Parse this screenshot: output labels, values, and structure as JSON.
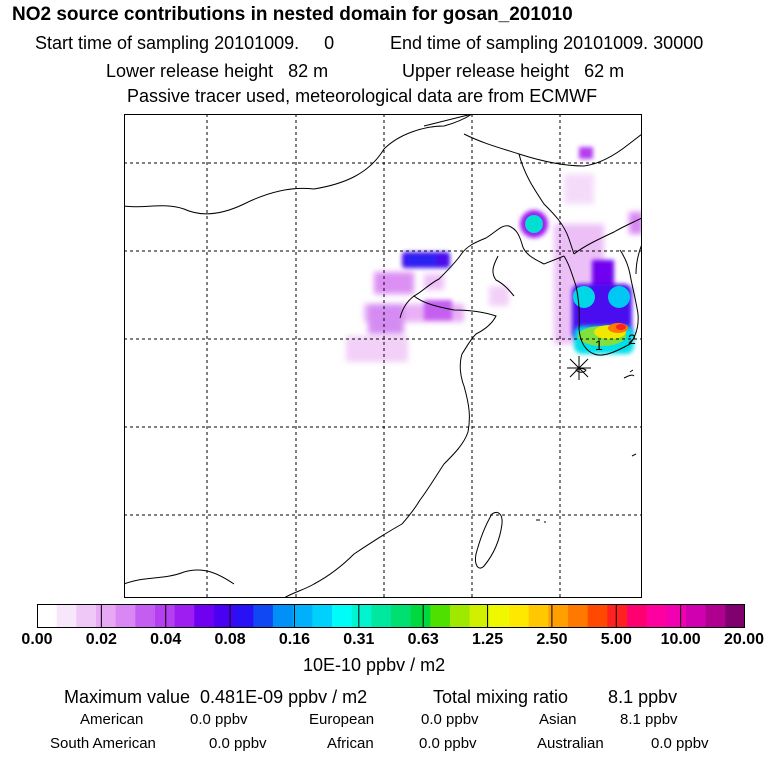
{
  "header": {
    "title": "NO2 source contributions in nested domain for gosan_201010",
    "start_label": "Start time of sampling 20101009.     0",
    "end_label": "End time of sampling 20101009. 30000",
    "lower_height": "Lower release height   82 m",
    "upper_height": "Upper release height   62 m",
    "tracer_note": "Passive tracer used, meteorological data are from ECMWF"
  },
  "map": {
    "markers": [
      {
        "label": "1",
        "type": "release-point"
      },
      {
        "label": "2",
        "type": "release-point"
      },
      {
        "label": "",
        "type": "receptor-star"
      }
    ]
  },
  "colorbar": {
    "colors": [
      "#ffffff",
      "#f8e6fb",
      "#f0c8f8",
      "#e7a8f5",
      "#d988f3",
      "#c45ef0",
      "#b43ef0",
      "#9e1ef2",
      "#7000f0",
      "#4a00f2",
      "#2a10f4",
      "#1048f4",
      "#0090f8",
      "#00b0fa",
      "#00d0fc",
      "#00fcf8",
      "#00f4d0",
      "#00e8a0",
      "#00e070",
      "#00d840",
      "#50e000",
      "#a0e800",
      "#d0f000",
      "#f0f800",
      "#ffe800",
      "#ffc800",
      "#ffa000",
      "#ff7800",
      "#ff4800",
      "#ff2020",
      "#ff0070",
      "#ff00a0",
      "#f000b0",
      "#d000b0",
      "#b00090",
      "#800070"
    ],
    "tick_labels": [
      "0.00",
      "0.02",
      "0.04",
      "0.08",
      "0.16",
      "0.31",
      "0.63",
      "1.25",
      "2.50",
      "5.00",
      "10.00",
      "20.00"
    ],
    "unit": "10E-10 ppbv / m2"
  },
  "summary": {
    "maximum": "Maximum value  0.481E-09 ppbv / m2",
    "total": "Total mixing ratio        8.1 ppbv",
    "regions": [
      {
        "name": "American",
        "value": "0.0 ppbv"
      },
      {
        "name": "European",
        "value": "0.0 ppbv"
      },
      {
        "name": "Asian",
        "value": "8.1 ppbv"
      },
      {
        "name": "South American",
        "value": "0.0 ppbv"
      },
      {
        "name": "African",
        "value": "0.0 ppbv"
      },
      {
        "name": "Australian",
        "value": "0.0 ppbv"
      }
    ]
  }
}
